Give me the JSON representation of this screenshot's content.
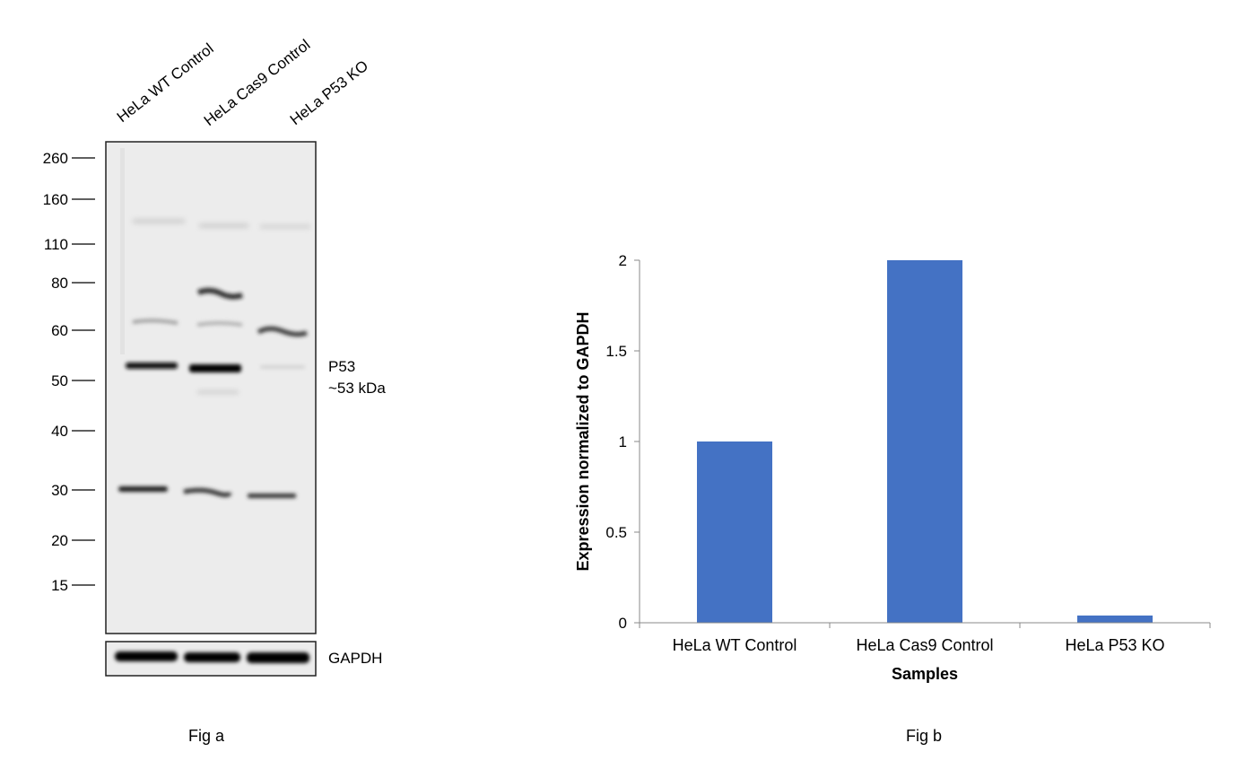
{
  "fig_a": {
    "lanes": [
      "HeLa WT Control",
      "HeLa Cas9 Control",
      "HeLa P53 KO"
    ],
    "markers": [
      "260",
      "160",
      "110",
      "80",
      "60",
      "50",
      "40",
      "30",
      "20",
      "15"
    ],
    "target_label": "P53",
    "target_size": "~53 kDa",
    "loading_control": "GAPDH",
    "caption": "Fig a"
  },
  "fig_b": {
    "caption": "Fig b"
  },
  "chart_data": {
    "type": "bar",
    "categories": [
      "HeLa WT Control",
      "HeLa Cas9 Control",
      "HeLa P53 KO"
    ],
    "values": [
      1.0,
      2.0,
      0.04
    ],
    "title": "",
    "xlabel": "Samples",
    "ylabel": "Expression normalized to GAPDH",
    "ylim": [
      0,
      2
    ],
    "yticks": [
      "0",
      "0.5",
      "1",
      "1.5",
      "2"
    ],
    "bar_color": "#4472C4",
    "grid": false,
    "legend": "none"
  }
}
